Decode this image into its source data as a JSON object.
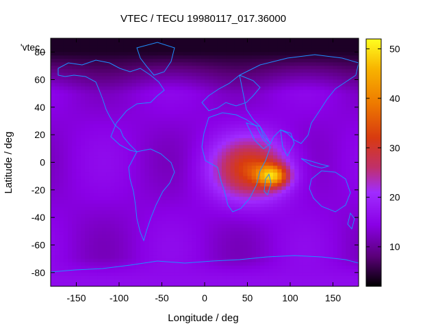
{
  "chart_data": {
    "type": "heatmap",
    "title": "VTEC / TECU 19980117_017.36000",
    "xlabel": "Longitude / deg",
    "ylabel": "Latitude / deg",
    "legend_label": "'vtec_",
    "xlim": [
      -180,
      180
    ],
    "ylim": [
      -90,
      90
    ],
    "x_ticks": [
      -150,
      -100,
      -50,
      0,
      50,
      100,
      150
    ],
    "y_ticks": [
      -80,
      -60,
      -40,
      -20,
      0,
      20,
      40,
      60,
      80
    ],
    "colorbar": {
      "range": [
        2,
        52
      ],
      "ticks": [
        10,
        20,
        30,
        40,
        50
      ],
      "palette": [
        "#000000",
        "#5a0078",
        "#8a00e6",
        "#a02cff",
        "#c0306a",
        "#d83a10",
        "#ee7a00",
        "#f8b400",
        "#ffff20"
      ]
    },
    "features": [
      {
        "name": "background",
        "value": 14
      },
      {
        "name": "equatorial-anomaly-peak",
        "lon": 80,
        "lat": -10,
        "value": 51
      },
      {
        "name": "africa-indian-ocean-region",
        "lon": 55,
        "lat": -5,
        "value": 33
      },
      {
        "name": "north-polar-region",
        "lat": 80,
        "value": 4
      },
      {
        "name": "south-polar-region",
        "lat": -85,
        "value": 16
      }
    ]
  }
}
